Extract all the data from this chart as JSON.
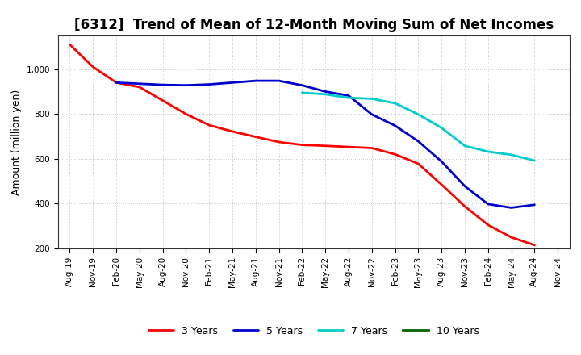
{
  "title": "[6312]  Trend of Mean of 12-Month Moving Sum of Net Incomes",
  "ylabel": "Amount (million yen)",
  "background_color": "#ffffff",
  "plot_bg_color": "#ffffff",
  "grid_color": "#999999",
  "ylim": [
    200,
    1150
  ],
  "yticks": [
    200,
    400,
    600,
    800,
    1000
  ],
  "ytick_labels": [
    "200",
    "400",
    "600",
    "800",
    "1,000"
  ],
  "series": {
    "3 Years": {
      "color": "#ff0000",
      "data": [
        1110,
        1010,
        940,
        920,
        860,
        800,
        750,
        722,
        698,
        675,
        662,
        658,
        653,
        648,
        620,
        578,
        485,
        388,
        305,
        250,
        215,
        null
      ]
    },
    "5 Years": {
      "color": "#0000cc",
      "data": [
        null,
        null,
        940,
        935,
        930,
        928,
        932,
        940,
        948,
        948,
        928,
        900,
        882,
        798,
        748,
        678,
        588,
        478,
        398,
        382,
        395,
        null
      ]
    },
    "7 Years": {
      "color": "#00cccc",
      "data": [
        null,
        null,
        null,
        null,
        null,
        null,
        null,
        null,
        null,
        null,
        895,
        888,
        872,
        868,
        848,
        798,
        738,
        658,
        632,
        618,
        592,
        null
      ]
    },
    "10 Years": {
      "color": "#006600",
      "data": [
        null,
        null,
        null,
        null,
        null,
        null,
        null,
        null,
        null,
        null,
        null,
        null,
        null,
        null,
        null,
        null,
        null,
        null,
        null,
        null,
        null,
        null
      ]
    }
  },
  "xtick_labels": [
    "Aug-19",
    "Nov-19",
    "Feb-20",
    "May-20",
    "Aug-20",
    "Nov-20",
    "Feb-21",
    "May-21",
    "Aug-21",
    "Nov-21",
    "Feb-22",
    "May-22",
    "Aug-22",
    "Nov-22",
    "Feb-23",
    "May-23",
    "Aug-23",
    "Nov-23",
    "Feb-24",
    "May-24",
    "Aug-24",
    "Nov-24"
  ],
  "title_fontsize": 12,
  "axis_label_fontsize": 9,
  "tick_fontsize": 7.5,
  "legend_fontsize": 9,
  "line_width": 2.0
}
